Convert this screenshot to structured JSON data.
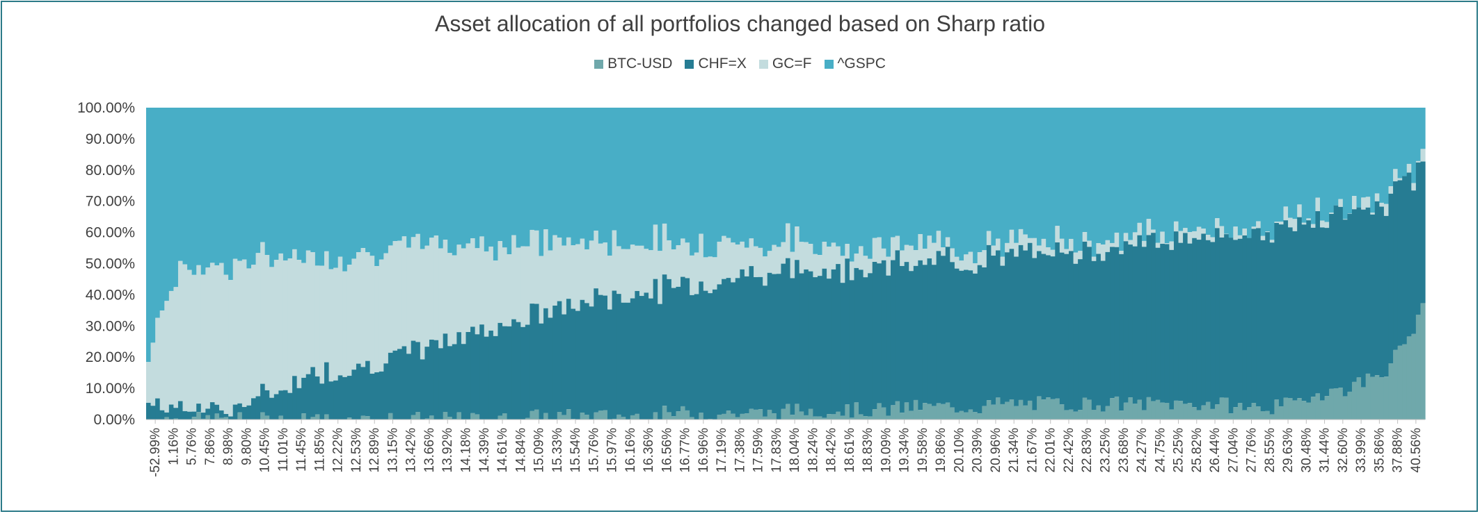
{
  "chart_data": {
    "type": "bar",
    "stacked": "100%",
    "title": "Asset allocation of all portfolios changed based on Sharp ratio",
    "xlabel": "",
    "ylabel": "",
    "ylim": [
      0,
      1
    ],
    "yticks": [
      "0.00%",
      "10.00%",
      "20.00%",
      "30.00%",
      "40.00%",
      "50.00%",
      "60.00%",
      "70.00%",
      "80.00%",
      "90.00%",
      "100.00%"
    ],
    "legend_position": "top",
    "x_tick_labels": [
      "-52.99%",
      "1.16%",
      "5.76%",
      "7.86%",
      "8.98%",
      "9.80%",
      "10.45%",
      "11.01%",
      "11.45%",
      "11.85%",
      "12.22%",
      "12.53%",
      "12.89%",
      "13.15%",
      "13.42%",
      "13.66%",
      "13.92%",
      "14.18%",
      "14.39%",
      "14.61%",
      "14.84%",
      "15.09%",
      "15.33%",
      "15.54%",
      "15.76%",
      "15.97%",
      "16.16%",
      "16.36%",
      "16.56%",
      "16.77%",
      "16.96%",
      "17.19%",
      "17.38%",
      "17.59%",
      "17.83%",
      "18.04%",
      "18.24%",
      "18.42%",
      "18.61%",
      "18.83%",
      "19.09%",
      "19.34%",
      "19.58%",
      "19.86%",
      "20.10%",
      "20.39%",
      "20.96%",
      "21.34%",
      "21.67%",
      "22.01%",
      "22.42%",
      "22.83%",
      "23.25%",
      "23.68%",
      "24.27%",
      "24.75%",
      "25.25%",
      "25.82%",
      "26.44%",
      "27.04%",
      "27.76%",
      "28.55%",
      "29.63%",
      "30.48%",
      "31.44%",
      "32.60%",
      "33.99%",
      "35.86%",
      "37.88%",
      "40.56%"
    ],
    "series": [
      {
        "name": "BTC-USD",
        "color": "#6fa8ab"
      },
      {
        "name": "CHF=X",
        "color": "#267c93"
      },
      {
        "name": "GC=F",
        "color": "#c3dcde"
      },
      {
        "name": "^GSPC",
        "color": "#48aec6"
      }
    ],
    "series_shares_at_x_ticks": {
      "BTC-USD": [
        0.0,
        0.0,
        0.0,
        0.0,
        0.0,
        0.0,
        0.0,
        0.0,
        0.0,
        0.0,
        0.0,
        0.0,
        0.0,
        0.0,
        0.0,
        0.0,
        0.0,
        0.0,
        0.0,
        0.0,
        0.0,
        0.01,
        0.01,
        0.01,
        0.01,
        0.01,
        0.01,
        0.01,
        0.02,
        0.02,
        0.02,
        0.02,
        0.02,
        0.02,
        0.02,
        0.03,
        0.03,
        0.03,
        0.03,
        0.03,
        0.03,
        0.04,
        0.04,
        0.04,
        0.04,
        0.04,
        0.05,
        0.05,
        0.05,
        0.05,
        0.05,
        0.05,
        0.05,
        0.05,
        0.05,
        0.05,
        0.05,
        0.05,
        0.05,
        0.04,
        0.04,
        0.04,
        0.05,
        0.08,
        0.09,
        0.1,
        0.13,
        0.16,
        0.24,
        0.35
      ],
      "CHF=X": [
        0.05,
        0.04,
        0.03,
        0.03,
        0.03,
        0.04,
        0.06,
        0.09,
        0.12,
        0.14,
        0.15,
        0.16,
        0.17,
        0.19,
        0.21,
        0.22,
        0.24,
        0.26,
        0.28,
        0.3,
        0.31,
        0.32,
        0.34,
        0.35,
        0.37,
        0.38,
        0.39,
        0.4,
        0.4,
        0.41,
        0.42,
        0.43,
        0.44,
        0.45,
        0.45,
        0.45,
        0.45,
        0.45,
        0.46,
        0.46,
        0.46,
        0.46,
        0.46,
        0.47,
        0.47,
        0.47,
        0.47,
        0.47,
        0.48,
        0.48,
        0.49,
        0.5,
        0.5,
        0.51,
        0.51,
        0.52,
        0.53,
        0.53,
        0.54,
        0.55,
        0.56,
        0.57,
        0.57,
        0.56,
        0.56,
        0.56,
        0.54,
        0.53,
        0.51,
        0.47
      ],
      "GC=F": [
        0.15,
        0.36,
        0.45,
        0.46,
        0.46,
        0.46,
        0.44,
        0.42,
        0.4,
        0.38,
        0.37,
        0.36,
        0.36,
        0.35,
        0.33,
        0.33,
        0.32,
        0.3,
        0.28,
        0.26,
        0.25,
        0.24,
        0.22,
        0.2,
        0.19,
        0.18,
        0.17,
        0.16,
        0.15,
        0.14,
        0.13,
        0.12,
        0.11,
        0.1,
        0.09,
        0.09,
        0.08,
        0.08,
        0.07,
        0.07,
        0.06,
        0.06,
        0.06,
        0.05,
        0.05,
        0.05,
        0.05,
        0.04,
        0.04,
        0.04,
        0.03,
        0.03,
        0.03,
        0.03,
        0.03,
        0.02,
        0.02,
        0.02,
        0.02,
        0.02,
        0.02,
        0.02,
        0.02,
        0.02,
        0.02,
        0.02,
        0.02,
        0.02,
        0.02,
        0.02
      ]
    }
  }
}
